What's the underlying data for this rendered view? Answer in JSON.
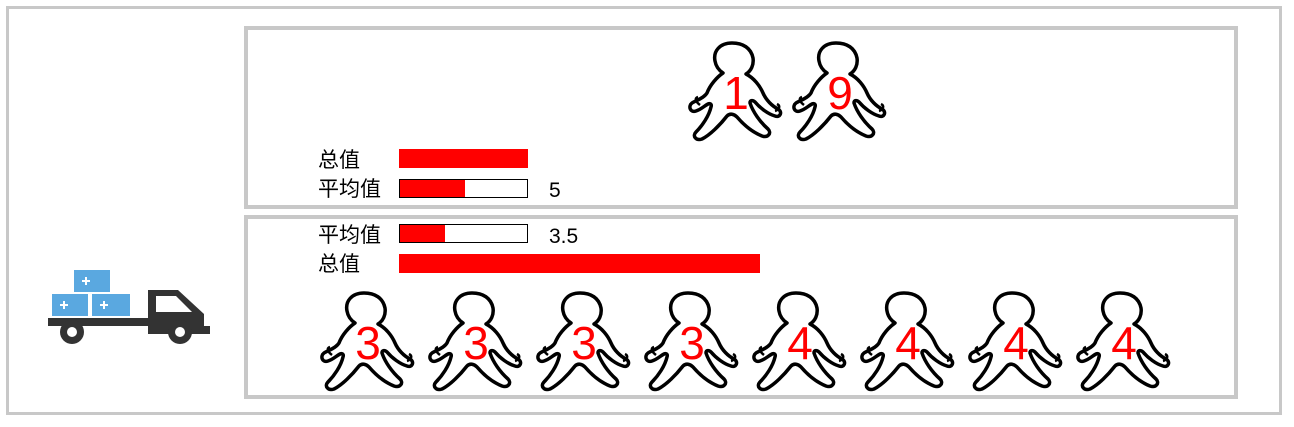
{
  "colors": {
    "accent": "#ff0000",
    "border": "#c8c8c8",
    "box": "#5aa8e0",
    "truck": "#333333"
  },
  "icons": {
    "left": "delivery-truck-icon",
    "figure": "person-walking-icon"
  },
  "top": {
    "figures": [
      "1",
      "9"
    ],
    "total": {
      "label": "总值",
      "value": 10,
      "fraction": 1.0
    },
    "average": {
      "label": "平均值",
      "text": "5",
      "fraction": 0.5
    }
  },
  "bottom": {
    "figures": [
      "3",
      "3",
      "3",
      "3",
      "4",
      "4",
      "4",
      "4"
    ],
    "average": {
      "label": "平均值",
      "text": "3.5",
      "fraction": 0.35
    },
    "total": {
      "label": "总值",
      "value": 28,
      "fraction": 2.8
    }
  }
}
